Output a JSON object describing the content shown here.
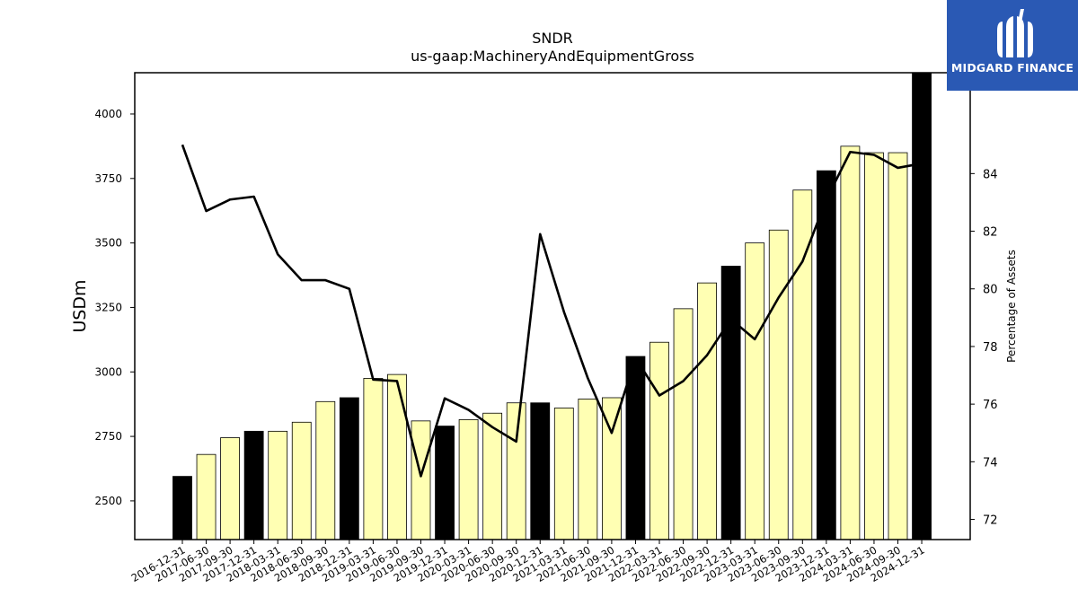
{
  "chart_data": {
    "type": "bar",
    "title": "SNDR",
    "subtitle": "us-gaap:MachineryAndEquipmentGross",
    "ylabel": "USDm",
    "y2label": "Percentage of Assets",
    "ylim": [
      2350,
      4160
    ],
    "y2lim": [
      71.3,
      87.5
    ],
    "yticks": [
      2500,
      2750,
      3000,
      3250,
      3500,
      3750,
      4000
    ],
    "y2ticks": [
      72,
      74,
      76,
      78,
      80,
      82,
      84
    ],
    "categories": [
      "2016-12-31",
      "2017-06-30",
      "2017-09-30",
      "2017-12-31",
      "2018-03-31",
      "2018-06-30",
      "2018-09-30",
      "2018-12-31",
      "2019-03-31",
      "2019-06-30",
      "2019-09-30",
      "2019-12-31",
      "2020-03-31",
      "2020-06-30",
      "2020-09-30",
      "2020-12-31",
      "2021-03-31",
      "2021-06-30",
      "2021-09-30",
      "2021-12-31",
      "2022-03-31",
      "2022-06-30",
      "2022-09-30",
      "2022-12-31",
      "2023-03-31",
      "2023-06-30",
      "2023-09-30",
      "2023-12-31",
      "2024-03-31",
      "2024-06-30",
      "2024-09-30",
      "2024-12-31"
    ],
    "series": [
      {
        "type": "bar",
        "values": [
          2595,
          2680,
          2745,
          2770,
          2770,
          2805,
          2885,
          2900,
          2975,
          2990,
          2810,
          2790,
          2815,
          2840,
          2880,
          2880,
          2860,
          2895,
          2900,
          3060,
          3115,
          3245,
          3345,
          3410,
          3500,
          3550,
          3705,
          3780,
          3875,
          3850,
          3850,
          4200
        ],
        "colors": [
          "#000000",
          "#ffffb3",
          "#ffffb3",
          "#000000",
          "#ffffb3",
          "#ffffb3",
          "#ffffb3",
          "#000000",
          "#ffffb3",
          "#ffffb3",
          "#ffffb3",
          "#000000",
          "#ffffb3",
          "#ffffb3",
          "#ffffb3",
          "#000000",
          "#ffffb3",
          "#ffffb3",
          "#ffffb3",
          "#000000",
          "#ffffb3",
          "#ffffb3",
          "#ffffb3",
          "#000000",
          "#ffffb3",
          "#ffffb3",
          "#ffffb3",
          "#000000",
          "#ffffb3",
          "#ffffb3",
          "#ffffb3",
          "#000000"
        ]
      },
      {
        "type": "line",
        "axis": "right",
        "color": "#000000",
        "values": [
          85.0,
          82.7,
          83.1,
          83.2,
          81.2,
          80.3,
          80.3,
          80.0,
          76.85,
          76.8,
          73.5,
          76.2,
          75.8,
          75.2,
          74.7,
          81.9,
          79.2,
          76.9,
          75.0,
          77.6,
          76.3,
          76.8,
          77.7,
          78.95,
          78.25,
          79.7,
          80.95,
          83.1,
          84.75,
          84.65,
          84.2,
          84.35
        ]
      }
    ],
    "grid": false,
    "legend": "none"
  },
  "logo": {
    "text": "MIDGARD FINANCE",
    "color": "#2a59b4"
  }
}
